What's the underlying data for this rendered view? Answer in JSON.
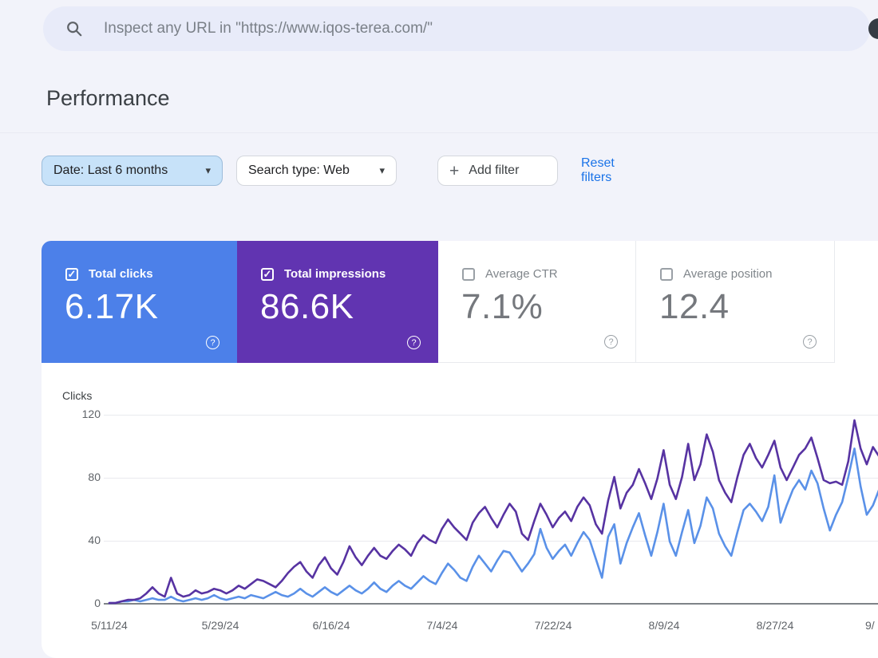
{
  "search_bar": {
    "placeholder": "Inspect any URL in \"https://www.iqos-terea.com/\""
  },
  "page": {
    "title": "Performance"
  },
  "filters": {
    "date_chip": "Date: Last 6 months",
    "search_type_chip": "Search type: Web",
    "add_filter": "Add filter",
    "reset": "Reset filters",
    "caret": "▾",
    "plus": "+"
  },
  "cards": [
    {
      "label": "Total clicks",
      "value": "6.17K",
      "checked": true,
      "color": "#4c80e9",
      "check_glyph": "✓",
      "help_glyph": "?"
    },
    {
      "label": "Total impressions",
      "value": "86.6K",
      "checked": true,
      "color": "#6134b1",
      "check_glyph": "✓",
      "help_glyph": "?"
    },
    {
      "label": "Average CTR",
      "value": "7.1%",
      "checked": false,
      "color": "#ffffff",
      "check_glyph": "",
      "help_glyph": "?"
    },
    {
      "label": "Average position",
      "value": "12.4",
      "checked": false,
      "color": "#ffffff",
      "check_glyph": "",
      "help_glyph": "?"
    }
  ],
  "chart_data": {
    "type": "line",
    "ylabel": "Clicks",
    "ylim": [
      0,
      120
    ],
    "grid": "horizontal",
    "legend": "none",
    "y_ticks": [
      "120",
      "80",
      "40",
      "0"
    ],
    "x_ticks": [
      "5/11/24",
      "5/29/24",
      "6/16/24",
      "7/4/24",
      "7/22/24",
      "8/9/24",
      "8/27/24",
      "9/"
    ],
    "x_start": "5/11/24",
    "x_interval": "daily",
    "tick_spacing_days": 18,
    "series": [
      {
        "name": "Total clicks",
        "color": "#5a91e8",
        "values": [
          0,
          0,
          1,
          1,
          2,
          1,
          2,
          3,
          2,
          2,
          4,
          2,
          1,
          2,
          3,
          2,
          3,
          5,
          3,
          2,
          3,
          4,
          3,
          5,
          4,
          3,
          5,
          7,
          5,
          4,
          6,
          9,
          6,
          4,
          7,
          10,
          7,
          5,
          8,
          11,
          8,
          6,
          9,
          13,
          9,
          7,
          11,
          14,
          11,
          9,
          13,
          17,
          14,
          12,
          19,
          25,
          21,
          16,
          14,
          23,
          30,
          25,
          20,
          27,
          33,
          32,
          26,
          20,
          25,
          31,
          47,
          35,
          28,
          33,
          37,
          30,
          38,
          45,
          40,
          28,
          16,
          42,
          50,
          25,
          38,
          48,
          57,
          43,
          30,
          45,
          63,
          39,
          30,
          45,
          59,
          38,
          49,
          67,
          60,
          44,
          36,
          30,
          45,
          59,
          63,
          58,
          52,
          61,
          81,
          51,
          62,
          72,
          78,
          72,
          84,
          76,
          60,
          46,
          56,
          64,
          80,
          98,
          74,
          56,
          62,
          72
        ]
      },
      {
        "name": "Total impressions (scaled to clicks axis)",
        "color": "#5733a2",
        "values": [
          0,
          0,
          1,
          2,
          2,
          3,
          6,
          10,
          6,
          4,
          16,
          6,
          4,
          5,
          8,
          6,
          7,
          9,
          8,
          6,
          8,
          11,
          9,
          12,
          15,
          14,
          12,
          10,
          14,
          19,
          23,
          26,
          20,
          16,
          24,
          29,
          22,
          18,
          26,
          36,
          29,
          24,
          30,
          35,
          30,
          28,
          33,
          37,
          34,
          30,
          38,
          43,
          40,
          38,
          47,
          53,
          48,
          44,
          40,
          51,
          57,
          61,
          54,
          48,
          56,
          63,
          58,
          44,
          40,
          52,
          63,
          56,
          48,
          54,
          58,
          52,
          61,
          67,
          62,
          50,
          44,
          65,
          80,
          60,
          70,
          75,
          85,
          76,
          66,
          79,
          97,
          75,
          66,
          80,
          101,
          78,
          88,
          107,
          96,
          78,
          70,
          64,
          80,
          94,
          101,
          92,
          86,
          94,
          103,
          86,
          78,
          86,
          94,
          98,
          105,
          92,
          78,
          76,
          77,
          75,
          90,
          116,
          98,
          88,
          99,
          93
        ]
      }
    ]
  }
}
